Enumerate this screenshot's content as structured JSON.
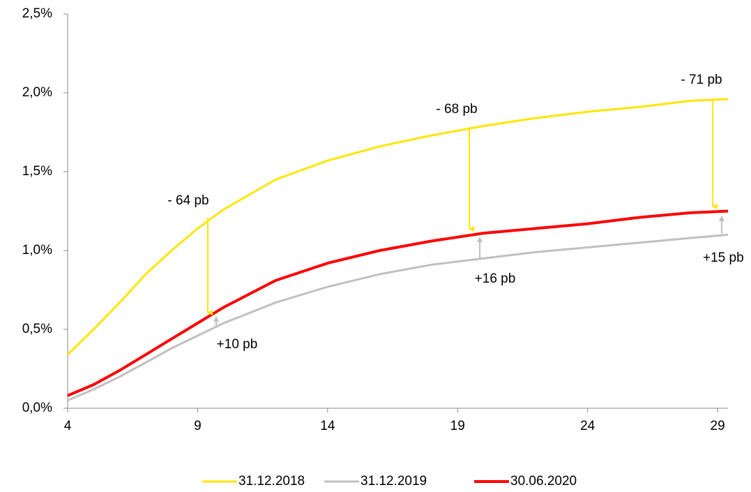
{
  "chart_data": {
    "type": "line",
    "x": [
      4,
      5,
      6,
      7,
      8,
      9,
      10,
      12,
      14,
      16,
      18,
      20,
      22,
      24,
      26,
      28,
      29.4
    ],
    "series": [
      {
        "name": "31.12.2018",
        "color": "#ffe600",
        "values": [
          0.34,
          0.5,
          0.67,
          0.85,
          1.0,
          1.14,
          1.26,
          1.45,
          1.57,
          1.66,
          1.73,
          1.79,
          1.84,
          1.88,
          1.91,
          1.95,
          1.96
        ]
      },
      {
        "name": "31.12.2019",
        "color": "#c0c0c0",
        "values": [
          0.05,
          0.12,
          0.2,
          0.29,
          0.38,
          0.46,
          0.54,
          0.67,
          0.77,
          0.85,
          0.91,
          0.95,
          0.99,
          1.02,
          1.05,
          1.08,
          1.1
        ]
      },
      {
        "name": "30.06.2020",
        "color": "#ff0000",
        "values": [
          0.08,
          0.15,
          0.24,
          0.34,
          0.44,
          0.54,
          0.64,
          0.81,
          0.92,
          1.0,
          1.06,
          1.11,
          1.14,
          1.17,
          1.21,
          1.24,
          1.25
        ]
      }
    ],
    "xlim": [
      4,
      29.4
    ],
    "xticks": [
      4,
      9,
      14,
      19,
      24,
      29
    ],
    "ylim": [
      0,
      2.5
    ],
    "yticks": [
      {
        "value": 0,
        "label": "0,0%"
      },
      {
        "value": 0.5,
        "label": "0,5%"
      },
      {
        "value": 1.0,
        "label": "1,0%"
      },
      {
        "value": 1.5,
        "label": "1,5%"
      },
      {
        "value": 2.0,
        "label": "2,0%"
      },
      {
        "value": 2.5,
        "label": "2,5%"
      }
    ],
    "annotations": [
      "- 64 pb",
      "- 68 pb",
      "- 71 pb",
      "+10 pb",
      "+16 pb",
      "+15 pb"
    ],
    "legend": "bottom"
  }
}
